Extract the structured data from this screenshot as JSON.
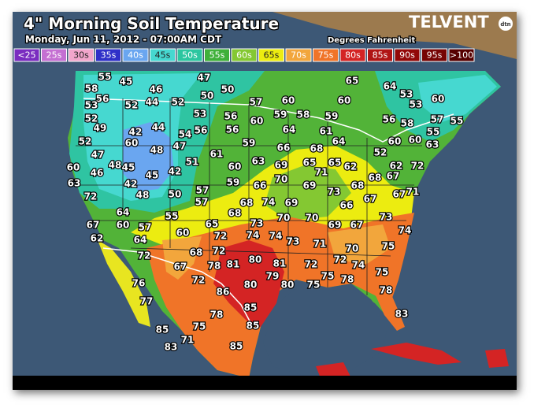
{
  "header": {
    "title": "4\" Morning Soil Temperature",
    "subtitle": "Monday, Jun 11, 2012 - 07:00AM CDT",
    "units": "Degrees Fahrenheit",
    "brand": "TELVENT",
    "brand_badge": "dtn"
  },
  "legend": [
    {
      "label": "<25",
      "color": "#7a2cc0"
    },
    {
      "label": "25s",
      "color": "#c46fd2"
    },
    {
      "label": "30s",
      "color": "#f2a6cc"
    },
    {
      "label": "35s",
      "color": "#2f30c8"
    },
    {
      "label": "40s",
      "color": "#6aa6f0"
    },
    {
      "label": "45s",
      "color": "#46d8d0"
    },
    {
      "label": "50s",
      "color": "#2cc6a0"
    },
    {
      "label": "55s",
      "color": "#3fb03a"
    },
    {
      "label": "60s",
      "color": "#84c832"
    },
    {
      "label": "65s",
      "color": "#ecec10"
    },
    {
      "label": "70s",
      "color": "#f2a63c"
    },
    {
      "label": "75s",
      "color": "#f07428"
    },
    {
      "label": "80s",
      "color": "#d42424"
    },
    {
      "label": "85s",
      "color": "#b01414"
    },
    {
      "label": "90s",
      "color": "#920808"
    },
    {
      "label": "95s",
      "color": "#760404"
    },
    {
      "label": ">100",
      "color": "#560000"
    }
  ],
  "stations": [
    55,
    45,
    47,
    58,
    56,
    46,
    50,
    50,
    65,
    64,
    53,
    53,
    52,
    44,
    52,
    57,
    60,
    60,
    60,
    53,
    52,
    53,
    56,
    59,
    58,
    59,
    56,
    58,
    57,
    55,
    49,
    42,
    44,
    56,
    54,
    56,
    60,
    64,
    61,
    55,
    52,
    60,
    48,
    47,
    59,
    66,
    68,
    64,
    52,
    60,
    60,
    63,
    47,
    48,
    45,
    45,
    42,
    51,
    61,
    60,
    63,
    69,
    65,
    65,
    62,
    62,
    72,
    60,
    46,
    42,
    71,
    68,
    63,
    59,
    66,
    70,
    69,
    73,
    68,
    67,
    71,
    72,
    48,
    50,
    57,
    57,
    68,
    74,
    69,
    66,
    67,
    67,
    64,
    55,
    68,
    70,
    73,
    67,
    60,
    57,
    65,
    73,
    70,
    69,
    67,
    62,
    64,
    60,
    72,
    74,
    74,
    73,
    71,
    74,
    72,
    68,
    72,
    70,
    75,
    80,
    81,
    72,
    72,
    74,
    67,
    78,
    81,
    79,
    75,
    80,
    75,
    75,
    78,
    76,
    72,
    80,
    86,
    85,
    78,
    77,
    83,
    78,
    85,
    85,
    75,
    71,
    83,
    85
  ]
}
